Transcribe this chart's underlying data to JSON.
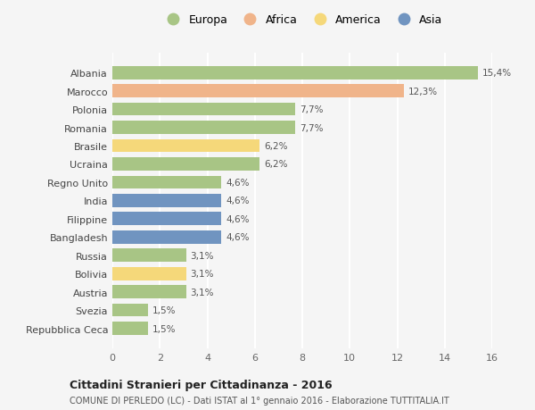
{
  "countries": [
    "Albania",
    "Marocco",
    "Polonia",
    "Romania",
    "Brasile",
    "Ucraina",
    "Regno Unito",
    "India",
    "Filippine",
    "Bangladesh",
    "Russia",
    "Bolivia",
    "Austria",
    "Svezia",
    "Repubblica Ceca"
  ],
  "values": [
    15.4,
    12.3,
    7.7,
    7.7,
    6.2,
    6.2,
    4.6,
    4.6,
    4.6,
    4.6,
    3.1,
    3.1,
    3.1,
    1.5,
    1.5
  ],
  "labels": [
    "15,4%",
    "12,3%",
    "7,7%",
    "7,7%",
    "6,2%",
    "6,2%",
    "4,6%",
    "4,6%",
    "4,6%",
    "4,6%",
    "3,1%",
    "3,1%",
    "3,1%",
    "1,5%",
    "1,5%"
  ],
  "colors": [
    "#a8c585",
    "#f0b48a",
    "#a8c585",
    "#a8c585",
    "#f5d87a",
    "#a8c585",
    "#a8c585",
    "#7094c0",
    "#7094c0",
    "#7094c0",
    "#a8c585",
    "#f5d87a",
    "#a8c585",
    "#a8c585",
    "#a8c585"
  ],
  "legend_labels": [
    "Europa",
    "Africa",
    "America",
    "Asia"
  ],
  "legend_colors": [
    "#a8c585",
    "#f0b48a",
    "#f5d87a",
    "#7094c0"
  ],
  "xlim": [
    0,
    16
  ],
  "xticks": [
    0,
    2,
    4,
    6,
    8,
    10,
    12,
    14,
    16
  ],
  "title": "Cittadini Stranieri per Cittadinanza - 2016",
  "subtitle": "COMUNE DI PERLEDO (LC) - Dati ISTAT al 1° gennaio 2016 - Elaborazione TUTTITALIA.IT",
  "bg_color": "#f5f5f5",
  "grid_color": "#ffffff",
  "bar_height": 0.72
}
